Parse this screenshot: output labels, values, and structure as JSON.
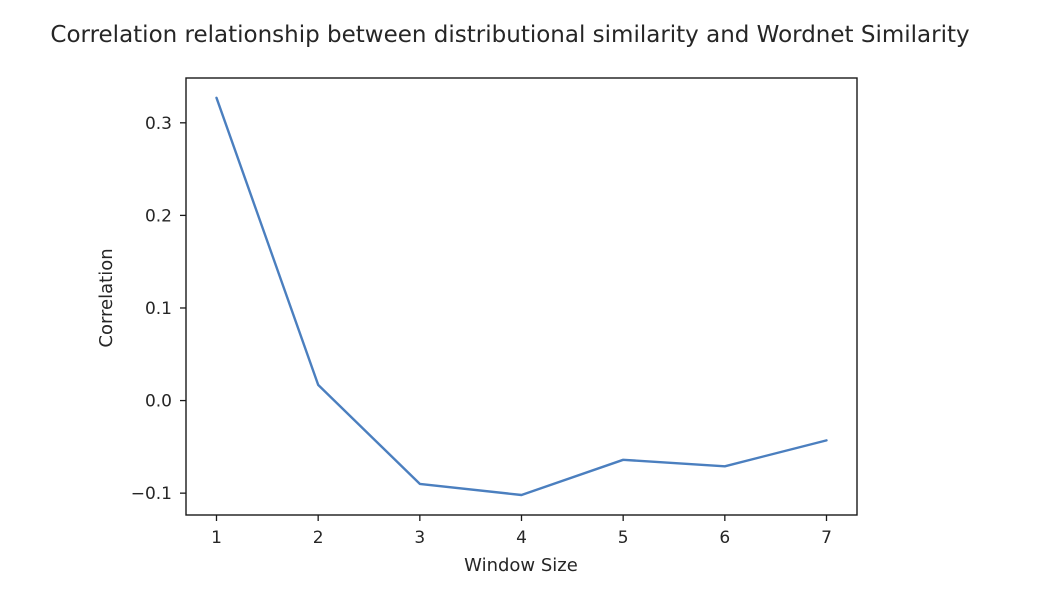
{
  "chart_data": {
    "type": "line",
    "title": "Correlation relationship between distributional similarity and Wordnet Similarity",
    "xlabel": "Window Size",
    "ylabel": "Correlation",
    "x": [
      1,
      2,
      3,
      4,
      5,
      6,
      7
    ],
    "series": [
      {
        "values": [
          0.327,
          0.017,
          -0.09,
          -0.102,
          -0.064,
          -0.071,
          -0.043
        ],
        "color": "#4b7fbf"
      }
    ],
    "xticks": [
      "1",
      "2",
      "3",
      "4",
      "5",
      "6",
      "7"
    ],
    "yticks": [
      "−0.1",
      "0.0",
      "0.1",
      "0.2",
      "0.3"
    ],
    "ytick_values": [
      -0.1,
      0.0,
      0.1,
      0.2,
      0.3
    ],
    "xlim": [
      0.7,
      7.3
    ],
    "ylim": [
      -0.1236,
      0.3484
    ],
    "grid": false,
    "legend": "none"
  }
}
